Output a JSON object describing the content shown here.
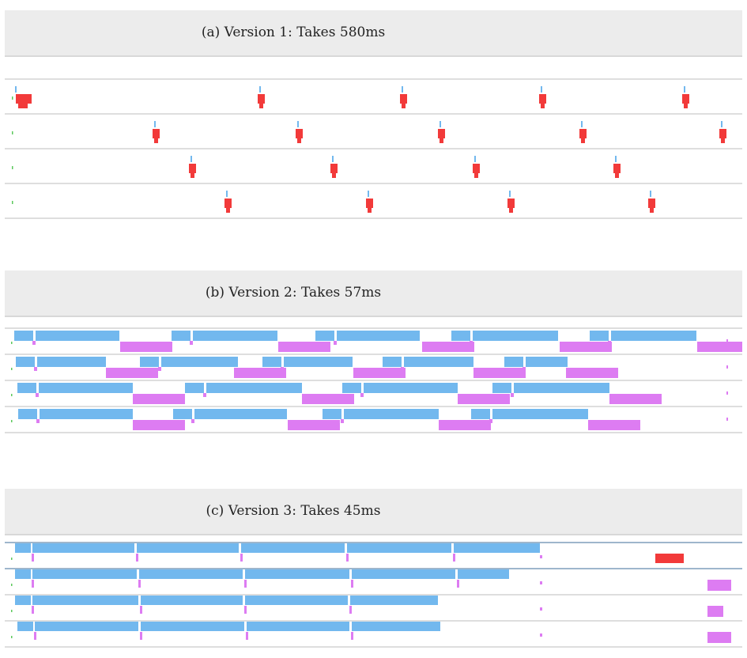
{
  "panels": [
    {
      "id": "a",
      "title": "(a) Version 1:  Takes 580ms",
      "lanes": 4
    },
    {
      "id": "b",
      "title": "(b) Version 2:  Takes 57ms",
      "lanes": 4
    },
    {
      "id": "c",
      "title": "(c) Version 3:  Takes 45ms",
      "lanes": 4
    }
  ],
  "colors": {
    "compute": "#72b8ee",
    "transfer_b": "#dd7cf2",
    "transfer_a": "#f23a3a",
    "marker_green": "#5cc85c",
    "divider": "#d4d4d4",
    "divider_emph": "#7e9dbb",
    "header_bg": "#ececec"
  }
}
